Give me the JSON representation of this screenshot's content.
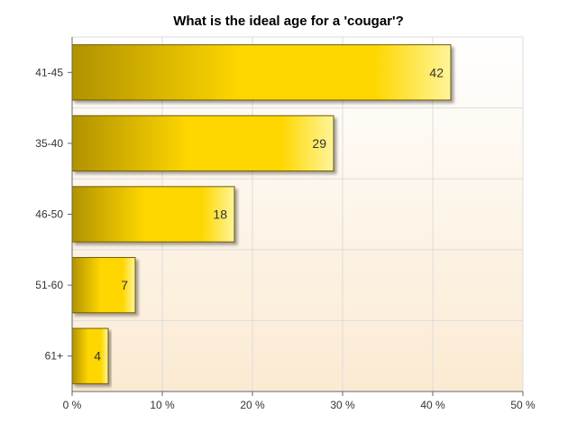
{
  "chart_data": {
    "type": "bar",
    "orientation": "horizontal",
    "title": "What is the ideal age for a 'cougar'?",
    "xlabel": "",
    "ylabel": "",
    "categories": [
      "41-45",
      "35-40",
      "46-50",
      "51-60",
      "61+"
    ],
    "values": [
      42,
      29,
      18,
      7,
      4
    ],
    "value_labels": [
      "42",
      "29",
      "18",
      "7",
      "4"
    ],
    "xlim": [
      0,
      50
    ],
    "x_ticks": [
      0,
      10,
      20,
      30,
      40,
      50
    ],
    "x_tick_labels": [
      "0 %",
      "10 %",
      "20 %",
      "30 %",
      "40 %",
      "50 %"
    ],
    "grid": true,
    "legend": "none",
    "colors": {
      "bar_dark": "#b09200",
      "bar_mid": "#ffd700",
      "bar_light": "#fff59a",
      "bar_border": "#6e5a00",
      "plot_bg_top": "#ffffff",
      "plot_bg_bottom": "#fbead2",
      "grid": "#dcdcdc"
    }
  }
}
